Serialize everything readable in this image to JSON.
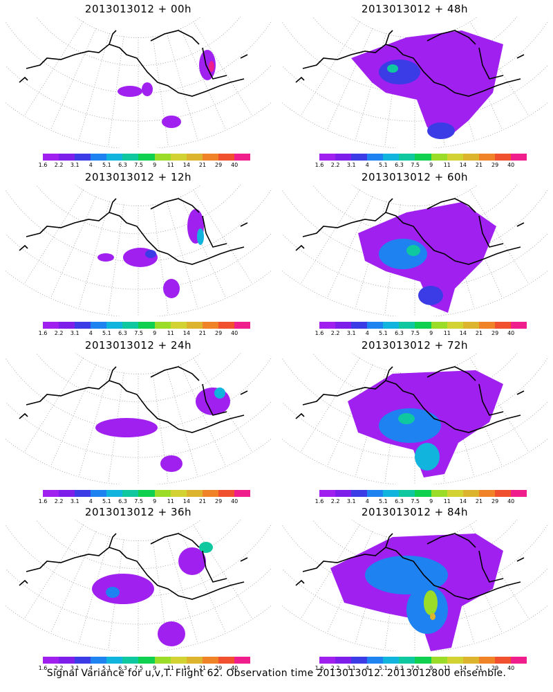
{
  "colorbar": {
    "labels": [
      "1.6",
      "2.2",
      "3.1",
      "4",
      "5.1",
      "6.3",
      "7.5",
      "9",
      "11",
      "14",
      "21",
      "29",
      "40"
    ],
    "colors": [
      "#a020f0",
      "#7d1eea",
      "#3c3ce6",
      "#1e82f0",
      "#10b4dc",
      "#10c8a0",
      "#10d050",
      "#9bdc28",
      "#d2d232",
      "#dcb42d",
      "#f08228",
      "#f0502d",
      "#f01e8c"
    ]
  },
  "panels": [
    {
      "title": "2013013012 + 00h"
    },
    {
      "title": "2013013012 + 48h"
    },
    {
      "title": "2013013012 + 12h"
    },
    {
      "title": "2013013012 + 60h"
    },
    {
      "title": "2013013012 + 24h"
    },
    {
      "title": "2013013012 + 72h"
    },
    {
      "title": "2013013012 + 36h"
    },
    {
      "title": "2013013012 + 84h"
    }
  ],
  "caption": "Signal Variance for u,v,T. Flight 62. Observation time 2013013012. 2013012800 ensemble."
}
